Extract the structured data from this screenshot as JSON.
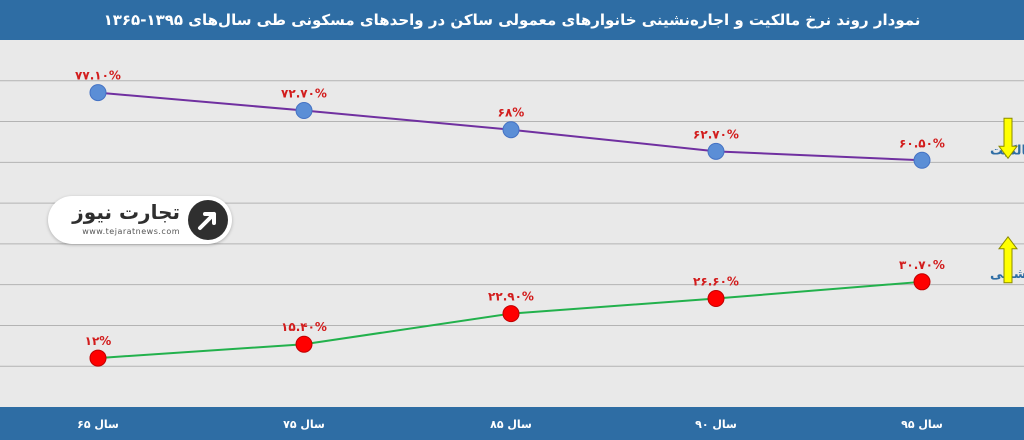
{
  "chart_data": {
    "type": "line",
    "title": "نمودار روند نرخ مالکیت و اجاره‌نشینی خانوارهای معمولی ساکن در واحدهای مسکونی طی سال‌های ۱۳۹۵-۱۳۶۵",
    "categories": [
      "سال ۶۵",
      "سال ۷۵",
      "سال ۸۵",
      "سال ۹۰",
      "سال ۹۵"
    ],
    "ylim": [
      0,
      90
    ],
    "grid": true,
    "series": [
      {
        "name": "مالکیت",
        "values": [
          77.1,
          72.7,
          68,
          62.7,
          60.5
        ],
        "labels": [
          "۷۷.۱۰%",
          "۷۲.۷۰%",
          "۶۸%",
          "۶۲.۷۰%",
          "۶۰.۵۰%"
        ],
        "line_color": "#7030a0",
        "marker_color": "#5b8ed6",
        "trend": "down"
      },
      {
        "name": "اجاره نشینی",
        "values": [
          12,
          15.4,
          22.9,
          26.6,
          30.7
        ],
        "labels": [
          "۱۲%",
          "۱۵.۴۰%",
          "۲۲.۹۰%",
          "۲۶.۶۰%",
          "۳۰.۷۰%"
        ],
        "line_color": "#22b14c",
        "marker_color": "#ff0000",
        "trend": "up"
      }
    ]
  },
  "colors": {
    "header": "#2e6da4",
    "background": "#e9e9e9",
    "label_red": "#d21c1c",
    "arrow_yellow": "#ffff00"
  },
  "logo": {
    "name": "تجارت نیوز",
    "url": "www.tejaratnews.com",
    "icon": "tejaratnews-logo-icon"
  }
}
